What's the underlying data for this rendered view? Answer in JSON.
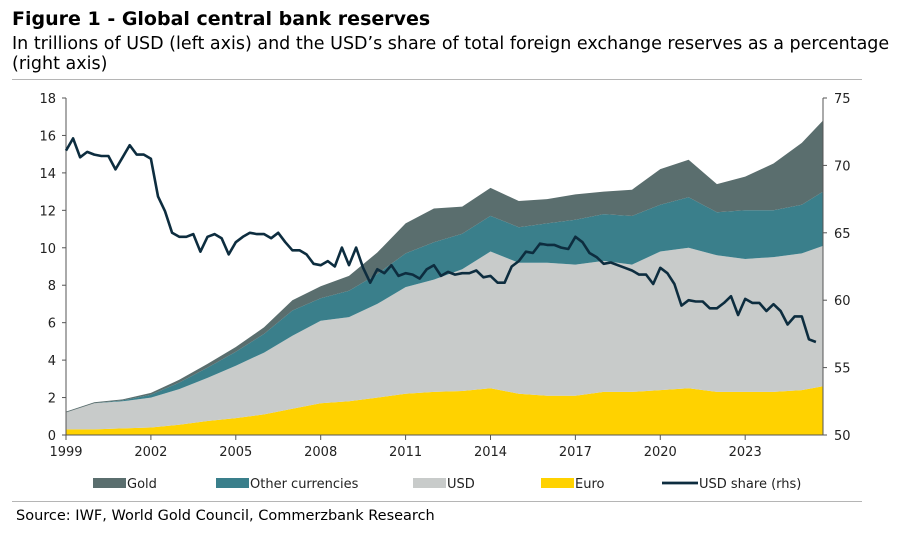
{
  "title": "Figure 1 - Global central bank reserves",
  "subtitle": "In trillions of USD (left axis) and the USD’s share of total foreign exchange reserves as a percentage (right axis)",
  "source": "Source: IWF, World Gold Council, Commerzbank Research",
  "chart_data": {
    "type": "area",
    "x_range": [
      1999.0,
      2025.75
    ],
    "x_ticks": [
      "1999",
      "2002",
      "2005",
      "2008",
      "2011",
      "2014",
      "2017",
      "2020",
      "2023"
    ],
    "y_left_ticks": [
      "0",
      "2",
      "4",
      "6",
      "8",
      "10",
      "12",
      "14",
      "16",
      "18"
    ],
    "y_right_ticks": [
      "50",
      "55",
      "60",
      "65",
      "70",
      "75"
    ],
    "ylim_left": [
      0,
      18
    ],
    "ylim_right": [
      50,
      75
    ],
    "legend_position": "bottom",
    "colors": {
      "Gold": "#5a6e6e",
      "Other currencies": "#3a7f8b",
      "USD": "#c8cbca",
      "Euro": "#ffd200",
      "USD share (rhs)": "#0d2d3f"
    },
    "stacked_series_order": [
      "Euro",
      "USD",
      "Other currencies",
      "Gold"
    ],
    "x": [
      1999,
      2000,
      2001,
      2002,
      2003,
      2004,
      2005,
      2006,
      2007,
      2008,
      2009,
      2010,
      2011,
      2012,
      2013,
      2014,
      2015,
      2016,
      2017,
      2018,
      2019,
      2020,
      2021,
      2022,
      2023,
      2024,
      2025,
      2025.75
    ],
    "series": [
      {
        "name": "Euro",
        "values": [
          0.3,
          0.3,
          0.35,
          0.4,
          0.55,
          0.75,
          0.9,
          1.1,
          1.4,
          1.7,
          1.8,
          2.0,
          2.2,
          2.3,
          2.35,
          2.5,
          2.2,
          2.1,
          2.1,
          2.3,
          2.3,
          2.4,
          2.5,
          2.3,
          2.3,
          2.3,
          2.4,
          2.6
        ]
      },
      {
        "name": "USD",
        "values": [
          0.9,
          1.4,
          1.45,
          1.6,
          1.9,
          2.3,
          2.8,
          3.3,
          3.9,
          4.4,
          4.5,
          5.0,
          5.7,
          6.0,
          6.5,
          7.3,
          7.0,
          7.1,
          7.0,
          7.0,
          6.8,
          7.4,
          7.5,
          7.3,
          7.1,
          7.2,
          7.3,
          7.5
        ]
      },
      {
        "name": "Other currencies",
        "values": [
          0.0,
          0.0,
          0.05,
          0.15,
          0.35,
          0.55,
          0.75,
          1.0,
          1.35,
          1.2,
          1.4,
          1.6,
          1.8,
          2.0,
          1.9,
          1.9,
          1.9,
          2.1,
          2.4,
          2.5,
          2.6,
          2.5,
          2.7,
          2.3,
          2.6,
          2.5,
          2.6,
          2.9
        ]
      },
      {
        "name": "Gold",
        "values": [
          0.05,
          0.05,
          0.05,
          0.1,
          0.15,
          0.2,
          0.25,
          0.35,
          0.55,
          0.65,
          0.8,
          1.15,
          1.6,
          1.8,
          1.45,
          1.5,
          1.4,
          1.3,
          1.35,
          1.2,
          1.4,
          1.9,
          2.0,
          1.5,
          1.8,
          2.5,
          3.3,
          3.8
        ]
      }
    ],
    "line_series": {
      "name": "USD share (rhs)",
      "axis": "right",
      "x": [
        1999,
        1999.25,
        1999.5,
        1999.75,
        2000,
        2000.25,
        2000.5,
        2000.75,
        2001,
        2001.25,
        2001.5,
        2001.75,
        2002,
        2002.25,
        2002.5,
        2002.75,
        2003,
        2003.25,
        2003.5,
        2003.75,
        2004,
        2004.25,
        2004.5,
        2004.75,
        2005,
        2005.25,
        2005.5,
        2005.75,
        2006,
        2006.25,
        2006.5,
        2006.75,
        2007,
        2007.25,
        2007.5,
        2007.75,
        2008,
        2008.25,
        2008.5,
        2008.75,
        2009,
        2009.25,
        2009.5,
        2009.75,
        2010,
        2010.25,
        2010.5,
        2010.75,
        2011,
        2011.25,
        2011.5,
        2011.75,
        2012,
        2012.25,
        2012.5,
        2012.75,
        2013,
        2013.25,
        2013.5,
        2013.75,
        2014,
        2014.25,
        2014.5,
        2014.75,
        2015,
        2015.25,
        2015.5,
        2015.75,
        2016,
        2016.25,
        2016.5,
        2016.75,
        2017,
        2017.25,
        2017.5,
        2017.75,
        2018,
        2018.25,
        2018.5,
        2018.75,
        2019,
        2019.25,
        2019.5,
        2019.75,
        2020,
        2020.25,
        2020.5,
        2020.75,
        2021,
        2021.25,
        2021.5,
        2021.75,
        2022,
        2022.25,
        2022.5,
        2022.75,
        2023,
        2023.25,
        2023.5,
        2023.75,
        2024,
        2024.25,
        2024.5,
        2024.75,
        2025,
        2025.25,
        2025.5
      ],
      "values": [
        71.1,
        72.0,
        70.6,
        71.0,
        70.8,
        70.7,
        70.7,
        69.7,
        70.6,
        71.5,
        70.8,
        70.8,
        70.5,
        67.7,
        66.6,
        65.0,
        64.7,
        64.7,
        64.9,
        63.6,
        64.7,
        64.9,
        64.6,
        63.4,
        64.3,
        64.7,
        65.0,
        64.9,
        64.9,
        64.6,
        65.0,
        64.3,
        63.7,
        63.7,
        63.4,
        62.7,
        62.6,
        62.9,
        62.5,
        63.9,
        62.6,
        63.9,
        62.4,
        61.3,
        62.3,
        62.0,
        62.6,
        61.8,
        62.0,
        61.9,
        61.6,
        62.3,
        62.6,
        61.8,
        62.1,
        61.9,
        62.0,
        62.0,
        62.2,
        61.7,
        61.8,
        61.3,
        61.3,
        62.5,
        62.9,
        63.6,
        63.5,
        64.2,
        64.1,
        64.1,
        63.9,
        63.8,
        64.7,
        64.3,
        63.5,
        63.2,
        62.7,
        62.8,
        62.6,
        62.4,
        62.2,
        61.9,
        61.9,
        61.2,
        62.4,
        62.0,
        61.2,
        59.6,
        60.0,
        59.9,
        59.9,
        59.4,
        59.4,
        59.8,
        60.3,
        58.9,
        60.1,
        59.8,
        59.8,
        59.2,
        59.7,
        59.2,
        58.2,
        58.8,
        58.8,
        57.1,
        56.9
      ]
    },
    "legend": [
      "Gold",
      "Other currencies",
      "USD",
      "Euro",
      "USD share (rhs)"
    ]
  }
}
